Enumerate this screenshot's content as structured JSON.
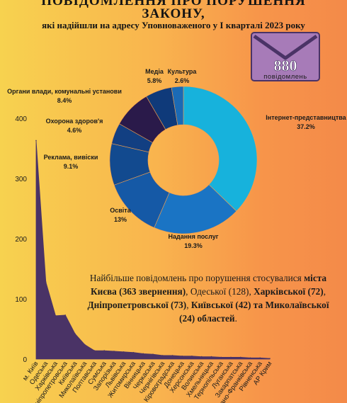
{
  "header": {
    "title_line1": "ПОВІДОМЛЕННЯ ПРО ПОРУШЕННЯ",
    "title_line2": "ЗАКОНУ,",
    "subtitle": "які надійшли на адресу Уповноваженого у І кварталі 2023 року"
  },
  "envelope": {
    "count": "880",
    "label": "повідомлень",
    "icon": "envelope-icon",
    "color": "#a77bb8"
  },
  "colors": {
    "area_fill": "#4a3366",
    "slices": [
      "#17b2dc",
      "#1a74c4",
      "#1559a6",
      "#124a8f",
      "#123f82",
      "#2a1a4a",
      "#0f3a7a",
      "#1b6ab5",
      "#0d4f93"
    ]
  },
  "chart_data": [
    {
      "type": "pie",
      "style": "donut",
      "slices": [
        {
          "label": "Інтернет-представництва",
          "value": 37.2,
          "pct_label": "37.2%"
        },
        {
          "label": "Надання послуг",
          "value": 19.3,
          "pct_label": "19.3%"
        },
        {
          "label": "Освіта",
          "value": 13,
          "pct_label": "13%"
        },
        {
          "label": "Реклама, вивіски",
          "value": 9.1,
          "pct_label": "9.1%"
        },
        {
          "label": "Охорона здоров'я",
          "value": 4.6,
          "pct_label": "4.6%"
        },
        {
          "label": "Органи влади, комунальні установи",
          "value": 8.4,
          "pct_label": "8.4%"
        },
        {
          "label": "Медіа",
          "value": 5.8,
          "pct_label": "5.8%"
        },
        {
          "label": "Культура",
          "value": 2.6,
          "pct_label": "2.6%"
        }
      ]
    },
    {
      "type": "area",
      "ylim": [
        0,
        400
      ],
      "y_ticks": [
        "0",
        "100",
        "200",
        "300",
        "400"
      ],
      "categories": [
        "м. Київ",
        "Одеська",
        "Харківська",
        "Дніпропетровська",
        "Київська",
        "Миколаївська",
        "Полтавська",
        "Сумська",
        "Запорізька",
        "Львівська",
        "Житомирська",
        "Вінницька",
        "Черкаська",
        "Чернігівська",
        "Кіровоградська",
        "Донецька",
        "Херсонська",
        "Волинська",
        "Хмельницька",
        "Тернопільська",
        "Луганська",
        "Закарпатська",
        "Івано-Франківська",
        "Рівненська",
        "АР Крим"
      ],
      "values": [
        363,
        128,
        72,
        73,
        42,
        24,
        14,
        14,
        13,
        12,
        11,
        9,
        8,
        6,
        6,
        5,
        5,
        4,
        4,
        3,
        3,
        3,
        2,
        2,
        1
      ]
    }
  ],
  "summary": {
    "part1": "Найбільше повідомлень про порушення стосувалися ",
    "part2": "міста Києва (363 звернення)",
    "part3": ", Одеської (128), ",
    "part4": "Харківської (72)",
    "part5": ", ",
    "part6": "Дніпропетровської (73)",
    "part7": ", ",
    "part8": "Київської (42) та Миколаївської (24) областей",
    "part9": "."
  }
}
